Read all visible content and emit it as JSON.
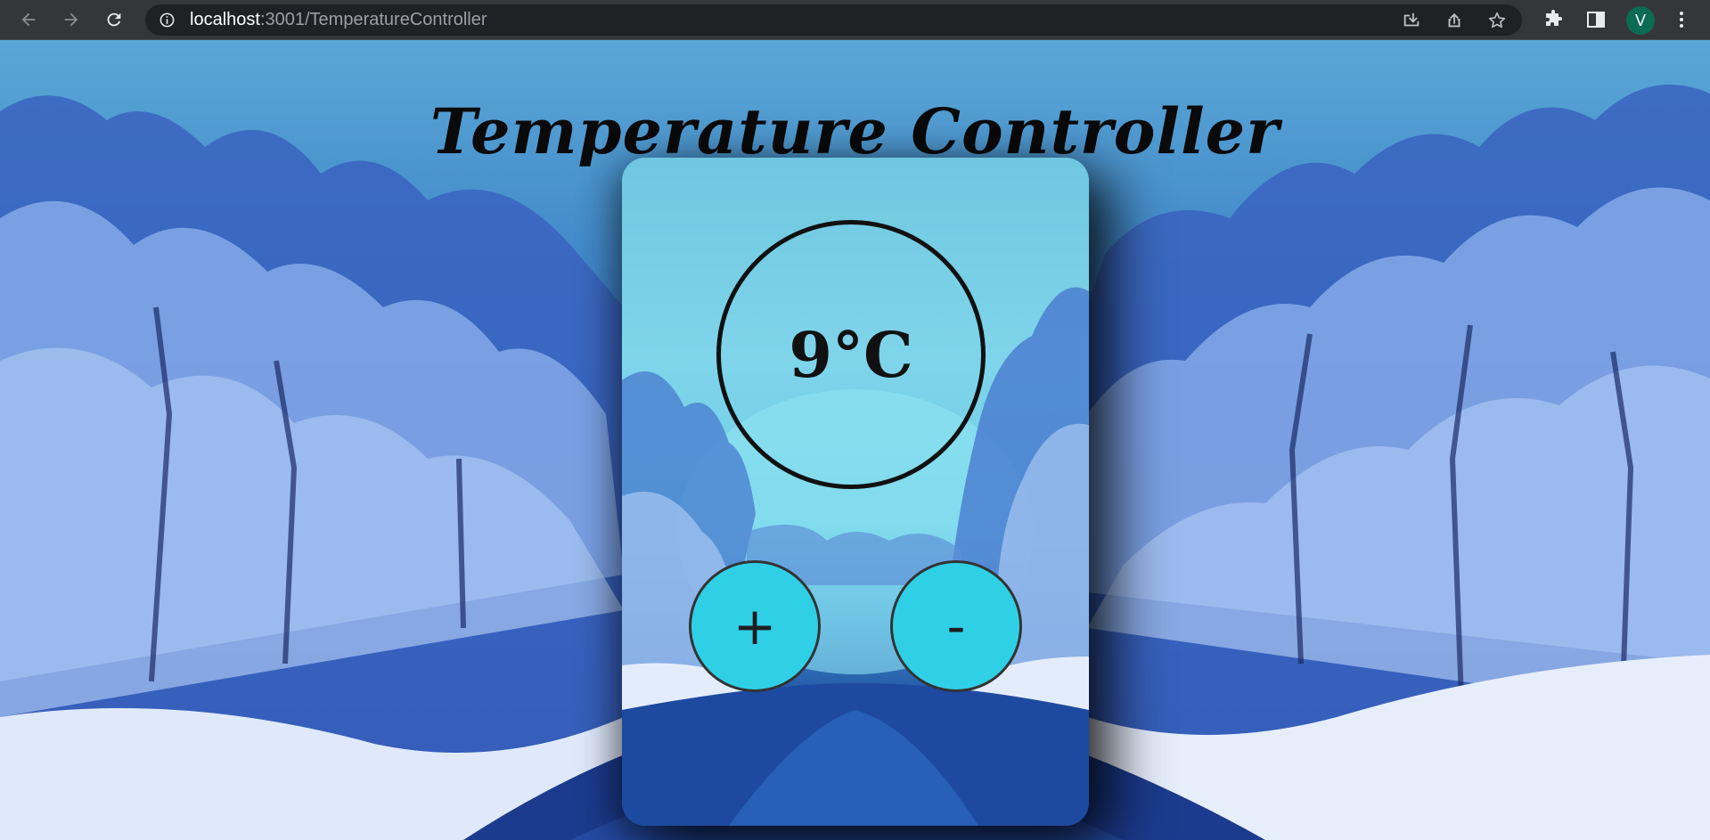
{
  "browser": {
    "url_host": "localhost",
    "url_path": ":3001/TemperatureController",
    "profile_initial": "V",
    "icons": [
      "back-arrow-icon",
      "forward-arrow-icon",
      "reload-icon",
      "info-icon",
      "install-icon",
      "share-icon",
      "star-icon",
      "extensions-icon",
      "side-panel-icon",
      "more-icon"
    ]
  },
  "page": {
    "title": "Temperature Controller"
  },
  "controller": {
    "temperature": "9°C",
    "increase_label": "+",
    "decrease_label": "-"
  },
  "colors": {
    "button_fill": "#2fd0e6",
    "button_border": "#333333",
    "text": "#111111"
  }
}
